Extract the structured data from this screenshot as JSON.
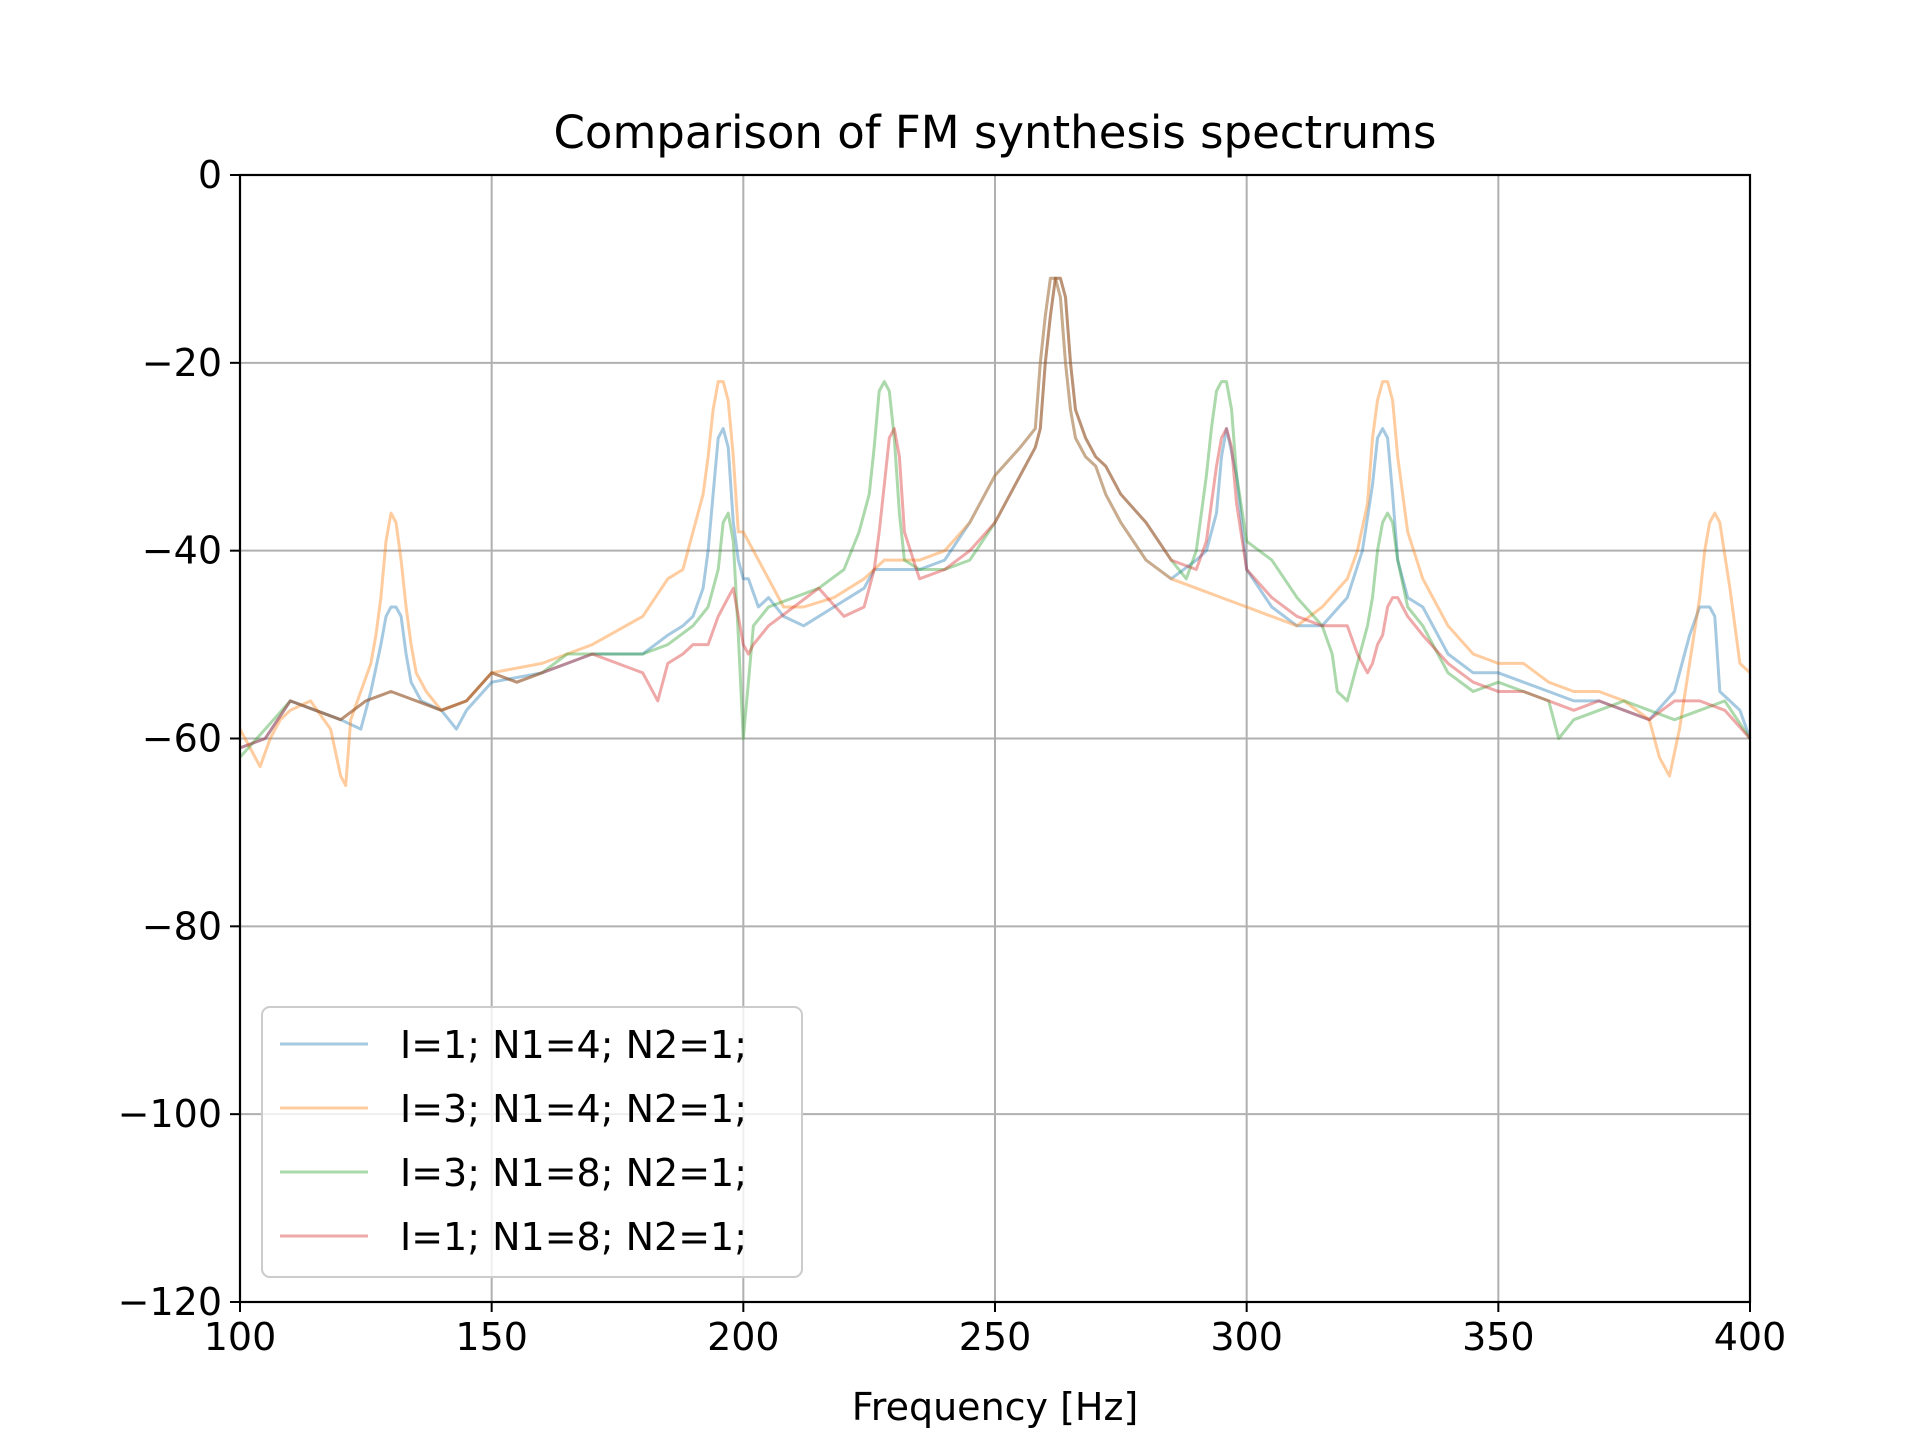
{
  "chart_data": {
    "type": "line",
    "title": "Comparison of FM synthesis spectrums",
    "xlabel": "Frequency [Hz]",
    "ylabel": "",
    "xlim": [
      100,
      400
    ],
    "ylim": [
      -120,
      0
    ],
    "xticks": [
      100,
      150,
      200,
      250,
      300,
      350,
      400
    ],
    "yticks": [
      0,
      -20,
      -40,
      -60,
      -80,
      -100,
      -120
    ],
    "xtick_labels": [
      "100",
      "150",
      "200",
      "250",
      "300",
      "350",
      "400"
    ],
    "ytick_labels": [
      "0",
      "−20",
      "−40",
      "−60",
      "−80",
      "−100",
      "−120"
    ],
    "grid": true,
    "legend_position": "lower-left",
    "series": [
      {
        "name": "I=1; N1=4; N2=1;",
        "color": "#1f77b4",
        "x": [
          100,
          105,
          110,
          115,
          120,
          124,
          126,
          128,
          129,
          130,
          131,
          132,
          133,
          134,
          136,
          140,
          143,
          145,
          150,
          160,
          170,
          180,
          185,
          188,
          190,
          192,
          193,
          194,
          195,
          196,
          197,
          198,
          199,
          200,
          201,
          203,
          205,
          208,
          212,
          218,
          224,
          226,
          228,
          230,
          235,
          240,
          245,
          250,
          255,
          258,
          259,
          260,
          261,
          262,
          263,
          264,
          265,
          266,
          268,
          270,
          272,
          275,
          280,
          285,
          290,
          292,
          294,
          295,
          296,
          298,
          300,
          305,
          310,
          315,
          320,
          323,
          325,
          326,
          327,
          328,
          329,
          330,
          332,
          335,
          340,
          345,
          350,
          355,
          360,
          365,
          370,
          375,
          380,
          385,
          388,
          390,
          392,
          393,
          394,
          396,
          398,
          400
        ],
        "y": [
          -61,
          -60,
          -56,
          -57,
          -58,
          -59,
          -55,
          -50,
          -47,
          -46,
          -46,
          -47,
          -51,
          -54,
          -56,
          -57,
          -59,
          -57,
          -54,
          -53,
          -51,
          -51,
          -49,
          -48,
          -47,
          -44,
          -40,
          -34,
          -28,
          -27,
          -29,
          -37,
          -41,
          -43,
          -43,
          -46,
          -45,
          -47,
          -48,
          -46,
          -44,
          -42,
          -42,
          -42,
          -42,
          -41,
          -37,
          -32,
          -29,
          -27,
          -20,
          -15,
          -11,
          -11,
          -13,
          -20,
          -25,
          -28,
          -30,
          -31,
          -34,
          -37,
          -41,
          -43,
          -41,
          -40,
          -36,
          -30,
          -27,
          -32,
          -42,
          -46,
          -48,
          -48,
          -45,
          -40,
          -33,
          -28,
          -27,
          -28,
          -34,
          -41,
          -45,
          -46,
          -51,
          -53,
          -53,
          -54,
          -55,
          -56,
          -56,
          -57,
          -58,
          -55,
          -49,
          -46,
          -46,
          -47,
          -55,
          -56,
          -57,
          -60
        ]
      },
      {
        "name": "I=3; N1=4; N2=1;",
        "color": "#ff7f0e",
        "x": [
          100,
          102,
          104,
          106,
          108,
          110,
          114,
          118,
          120,
          121,
          122,
          124,
          126,
          127,
          128,
          129,
          130,
          131,
          132,
          133,
          134,
          135,
          137,
          140,
          145,
          150,
          160,
          170,
          180,
          185,
          188,
          190,
          192,
          193,
          194,
          195,
          196,
          197,
          198,
          199,
          200,
          202,
          205,
          208,
          212,
          218,
          224,
          228,
          235,
          240,
          245,
          250,
          255,
          258,
          259,
          260,
          261,
          262,
          263,
          264,
          265,
          266,
          268,
          270,
          272,
          275,
          280,
          285,
          290,
          295,
          300,
          305,
          310,
          315,
          320,
          322,
          324,
          325,
          326,
          327,
          328,
          329,
          330,
          332,
          335,
          340,
          345,
          350,
          355,
          360,
          365,
          370,
          375,
          380,
          382,
          384,
          386,
          388,
          390,
          391,
          392,
          393,
          394,
          396,
          398,
          400
        ],
        "y": [
          -59,
          -61,
          -63,
          -60,
          -58,
          -57,
          -56,
          -59,
          -64,
          -65,
          -58,
          -55,
          -52,
          -49,
          -45,
          -39,
          -36,
          -37,
          -41,
          -46,
          -50,
          -53,
          -55,
          -57,
          -56,
          -53,
          -52,
          -50,
          -47,
          -43,
          -42,
          -38,
          -34,
          -30,
          -25,
          -22,
          -22,
          -24,
          -30,
          -38,
          -38,
          -40,
          -43,
          -46,
          -46,
          -45,
          -43,
          -41,
          -41,
          -40,
          -37,
          -32,
          -29,
          -27,
          -20,
          -15,
          -11,
          -11,
          -13,
          -20,
          -25,
          -28,
          -30,
          -31,
          -34,
          -37,
          -41,
          -43,
          -44,
          -45,
          -46,
          -47,
          -48,
          -46,
          -43,
          -40,
          -35,
          -28,
          -24,
          -22,
          -22,
          -24,
          -30,
          -38,
          -43,
          -48,
          -51,
          -52,
          -52,
          -54,
          -55,
          -55,
          -56,
          -58,
          -62,
          -64,
          -59,
          -52,
          -45,
          -40,
          -37,
          -36,
          -37,
          -44,
          -52,
          -53
        ]
      },
      {
        "name": "I=3; N1=8; N2=1;",
        "color": "#2ca02c",
        "x": [
          100,
          105,
          110,
          115,
          120,
          125,
          130,
          135,
          140,
          145,
          150,
          155,
          160,
          165,
          170,
          175,
          180,
          185,
          190,
          193,
          195,
          196,
          197,
          198,
          199,
          200,
          201,
          202,
          205,
          210,
          215,
          220,
          223,
          225,
          226,
          227,
          228,
          229,
          230,
          231,
          232,
          235,
          240,
          245,
          250,
          255,
          258,
          259,
          260,
          261,
          262,
          263,
          264,
          265,
          266,
          268,
          270,
          272,
          275,
          280,
          285,
          288,
          290,
          291,
          292,
          293,
          294,
          295,
          296,
          297,
          298,
          300,
          305,
          310,
          315,
          317,
          318,
          320,
          322,
          324,
          325,
          326,
          327,
          328,
          329,
          330,
          332,
          335,
          340,
          345,
          350,
          355,
          360,
          362,
          365,
          370,
          375,
          380,
          385,
          390,
          395,
          400
        ],
        "y": [
          -62,
          -59,
          -56,
          -57,
          -58,
          -56,
          -55,
          -56,
          -57,
          -56,
          -53,
          -54,
          -53,
          -51,
          -51,
          -51,
          -51,
          -50,
          -48,
          -46,
          -42,
          -37,
          -36,
          -39,
          -49,
          -60,
          -54,
          -48,
          -46,
          -45,
          -44,
          -42,
          -38,
          -34,
          -29,
          -23,
          -22,
          -23,
          -28,
          -36,
          -41,
          -42,
          -42,
          -41,
          -37,
          -32,
          -29,
          -27,
          -20,
          -15,
          -11,
          -11,
          -13,
          -20,
          -25,
          -28,
          -30,
          -31,
          -34,
          -37,
          -41,
          -43,
          -40,
          -36,
          -32,
          -27,
          -23,
          -22,
          -22,
          -25,
          -32,
          -39,
          -41,
          -45,
          -48,
          -51,
          -55,
          -56,
          -52,
          -48,
          -45,
          -40,
          -37,
          -36,
          -37,
          -41,
          -46,
          -48,
          -53,
          -55,
          -54,
          -55,
          -56,
          -60,
          -58,
          -57,
          -56,
          -57,
          -58,
          -57,
          -56,
          -60
        ]
      },
      {
        "name": "I=1; N1=8; N2=1;",
        "color": "#d62728",
        "x": [
          100,
          105,
          110,
          115,
          120,
          125,
          130,
          135,
          140,
          145,
          150,
          155,
          160,
          165,
          170,
          175,
          180,
          183,
          185,
          188,
          190,
          193,
          195,
          196,
          197,
          198,
          199,
          200,
          201,
          202,
          205,
          210,
          215,
          220,
          224,
          226,
          227,
          228,
          229,
          230,
          231,
          232,
          235,
          240,
          245,
          250,
          255,
          258,
          259,
          260,
          261,
          262,
          263,
          264,
          265,
          266,
          268,
          270,
          272,
          275,
          280,
          285,
          290,
          292,
          293,
          294,
          295,
          296,
          297,
          298,
          300,
          305,
          310,
          315,
          320,
          322,
          324,
          325,
          326,
          327,
          328,
          329,
          330,
          332,
          335,
          340,
          345,
          350,
          355,
          360,
          365,
          370,
          375,
          380,
          385,
          390,
          395,
          400
        ],
        "y": [
          -61,
          -60,
          -56,
          -57,
          -58,
          -56,
          -55,
          -56,
          -57,
          -56,
          -53,
          -54,
          -53,
          -52,
          -51,
          -52,
          -53,
          -56,
          -52,
          -51,
          -50,
          -50,
          -47,
          -46,
          -45,
          -44,
          -47,
          -50,
          -51,
          -50,
          -48,
          -46,
          -44,
          -47,
          -46,
          -42,
          -38,
          -33,
          -28,
          -27,
          -30,
          -38,
          -43,
          -42,
          -40,
          -37,
          -32,
          -29,
          -27,
          -20,
          -15,
          -11,
          -11,
          -13,
          -20,
          -25,
          -28,
          -30,
          -31,
          -34,
          -37,
          -41,
          -42,
          -39,
          -35,
          -31,
          -28,
          -27,
          -29,
          -35,
          -42,
          -45,
          -47,
          -48,
          -48,
          -51,
          -53,
          -52,
          -50,
          -49,
          -46,
          -45,
          -45,
          -47,
          -49,
          -52,
          -54,
          -55,
          -55,
          -56,
          -57,
          -56,
          -57,
          -58,
          -56,
          -56,
          -57,
          -60
        ]
      }
    ]
  }
}
